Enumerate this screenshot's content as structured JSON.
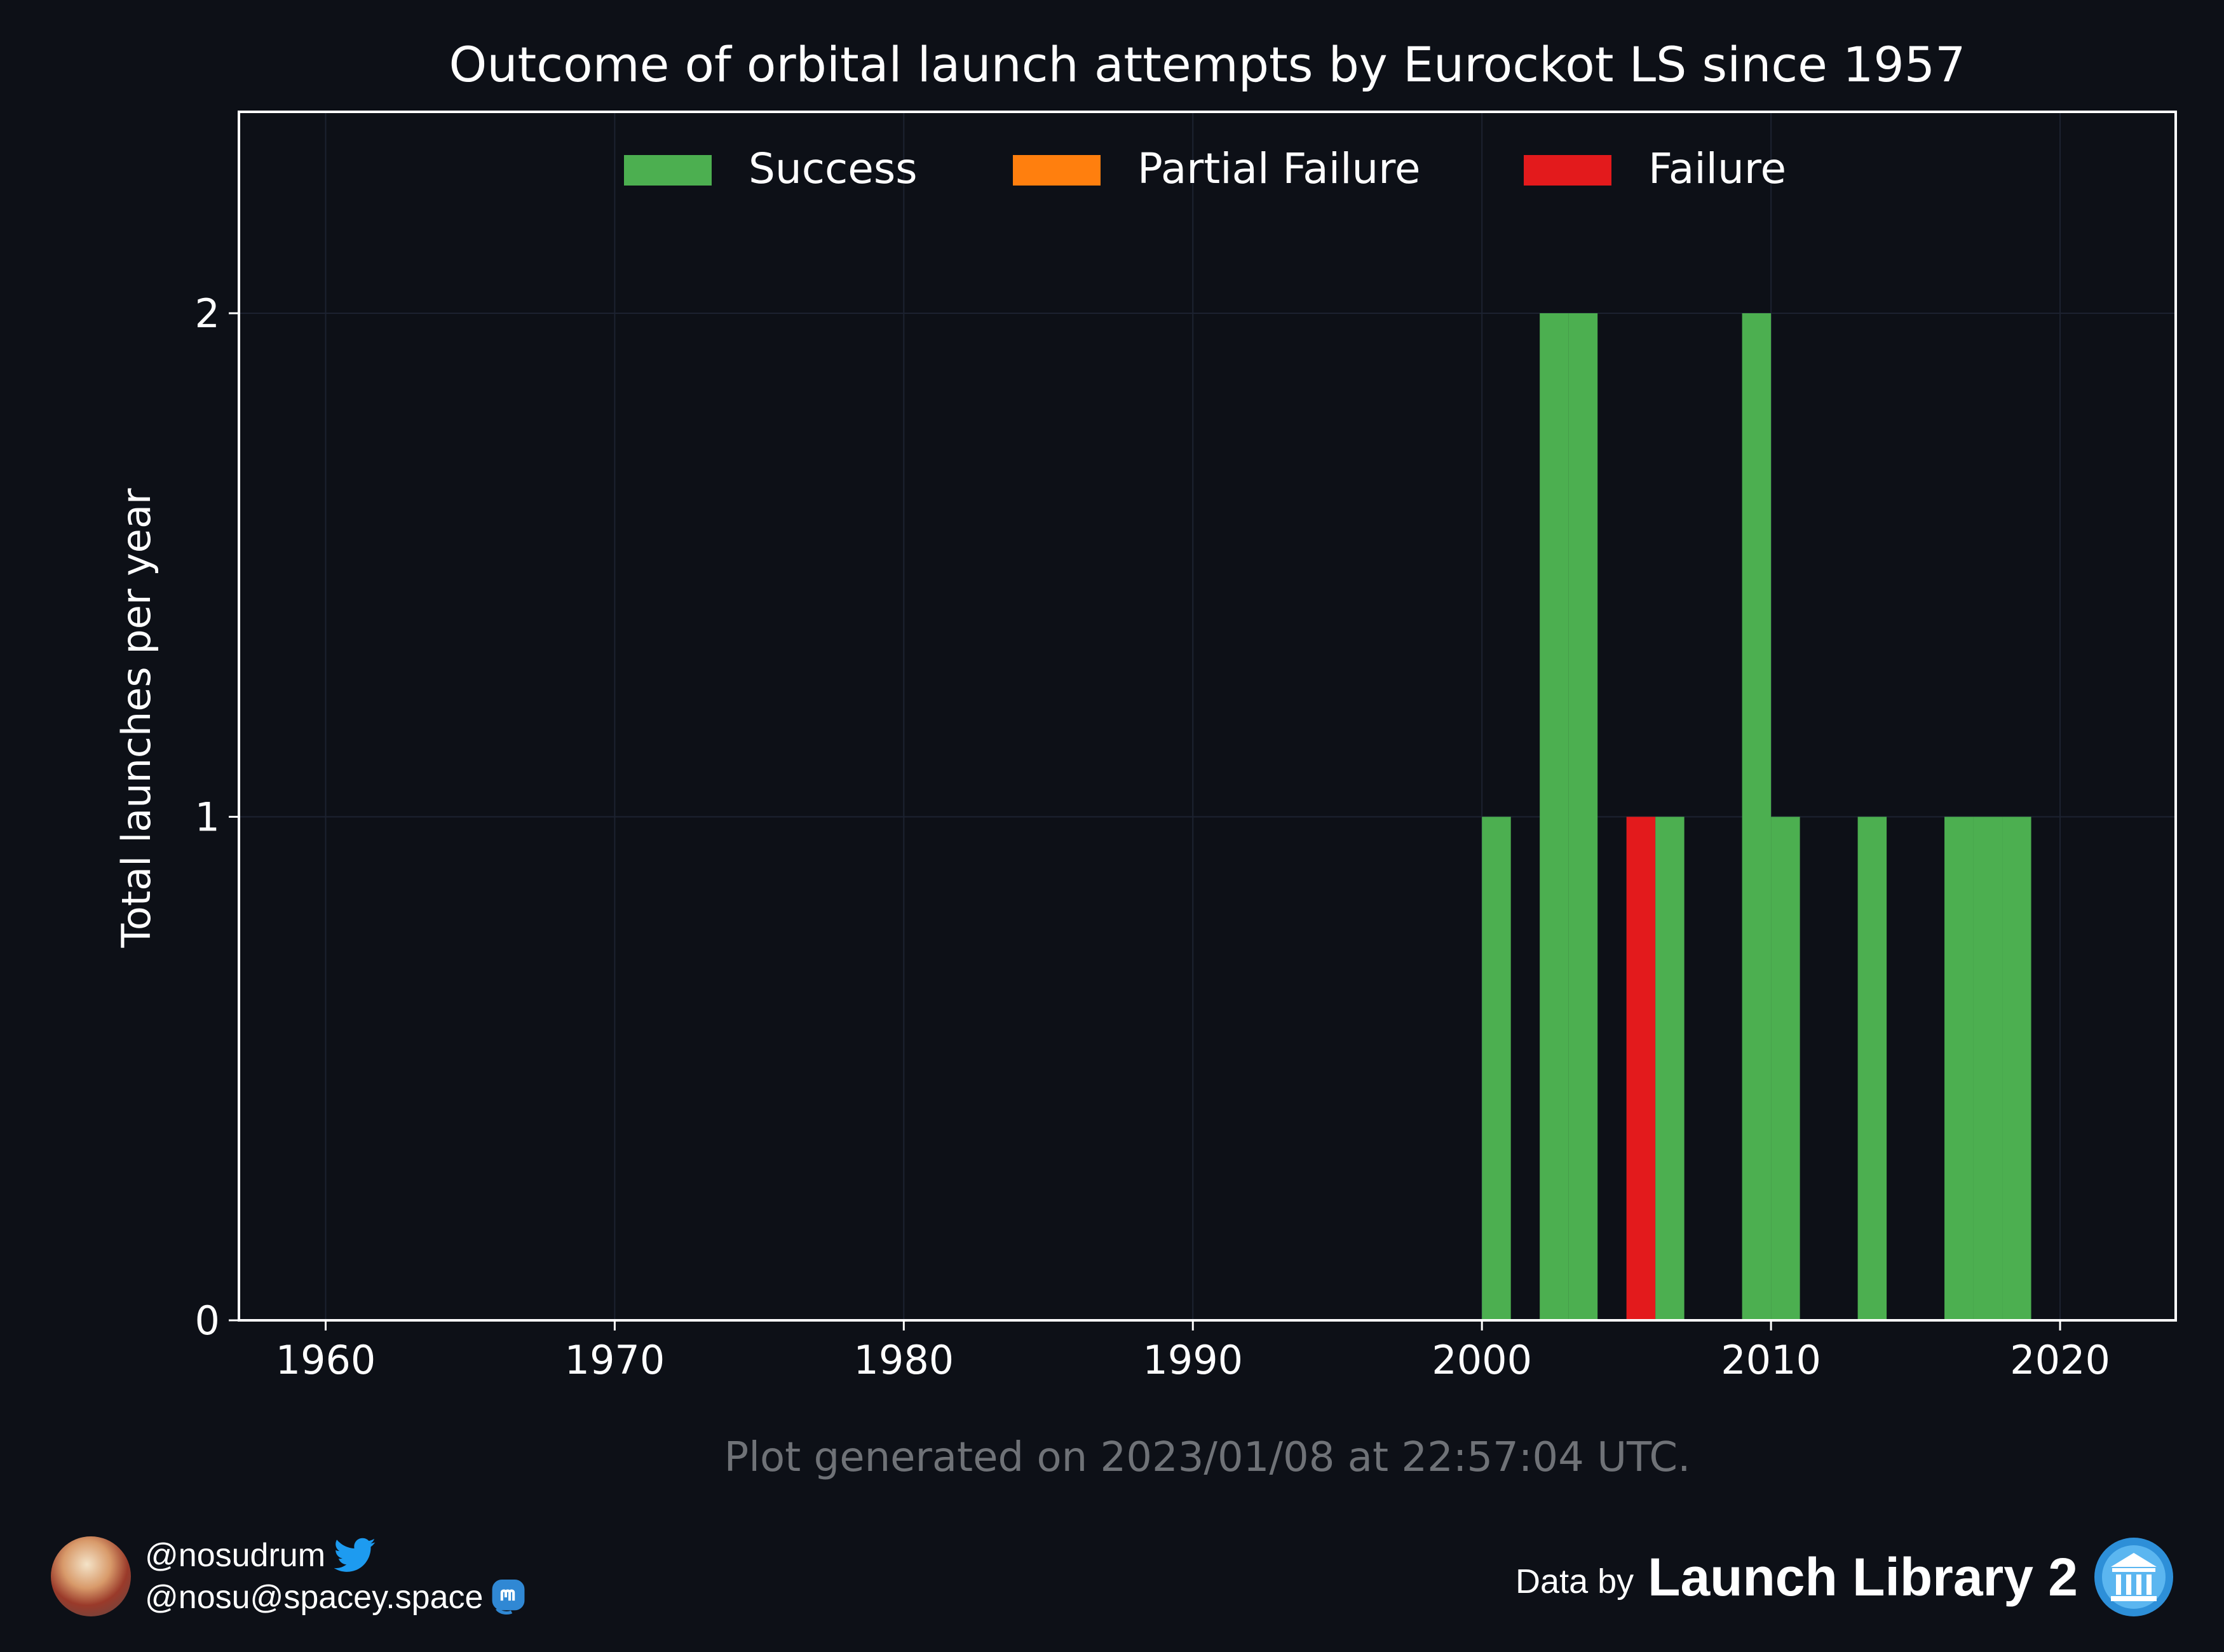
{
  "chart_data": {
    "type": "bar",
    "stacked": true,
    "title": "Outcome of orbital launch attempts by Eurockot LS since 1957",
    "ylabel": "Total launches per year",
    "xlabel": "",
    "xlim": [
      1957,
      2024
    ],
    "ylim": [
      0,
      2.4
    ],
    "xticks": [
      1960,
      1970,
      1980,
      1990,
      2000,
      2010,
      2020
    ],
    "yticks": [
      0,
      1,
      2
    ],
    "grid": true,
    "legend_position": "top-center",
    "bar_width_years": 1,
    "colors": {
      "background": "#0d1017",
      "Success": "#4caf50",
      "Partial Failure": "#ff7f0e",
      "Failure": "#e31a1c",
      "grid": "#1c2230",
      "axes": "#ffffff"
    },
    "x": [
      2000,
      2002,
      2003,
      2005,
      2006,
      2009,
      2010,
      2013,
      2016,
      2017,
      2018
    ],
    "series": [
      {
        "name": "Success",
        "values": [
          1,
          2,
          2,
          0,
          1,
          2,
          1,
          1,
          1,
          1,
          1
        ]
      },
      {
        "name": "Partial Failure",
        "values": [
          0,
          0,
          0,
          0,
          0,
          0,
          0,
          0,
          0,
          0,
          0
        ]
      },
      {
        "name": "Failure",
        "values": [
          0,
          0,
          0,
          1,
          0,
          0,
          0,
          0,
          0,
          0,
          0
        ]
      }
    ],
    "note": "Plot generated on 2023/01/08 at 22:57:04 UTC."
  },
  "footer": {
    "twitter_handle": "@nosudrum",
    "mastodon_handle": "@nosu@spacey.space",
    "data_by": "Data by",
    "source_name": "Launch Library 2",
    "icons": [
      "avatar",
      "twitter-icon",
      "mastodon-icon",
      "launch-library-logo-icon"
    ]
  }
}
